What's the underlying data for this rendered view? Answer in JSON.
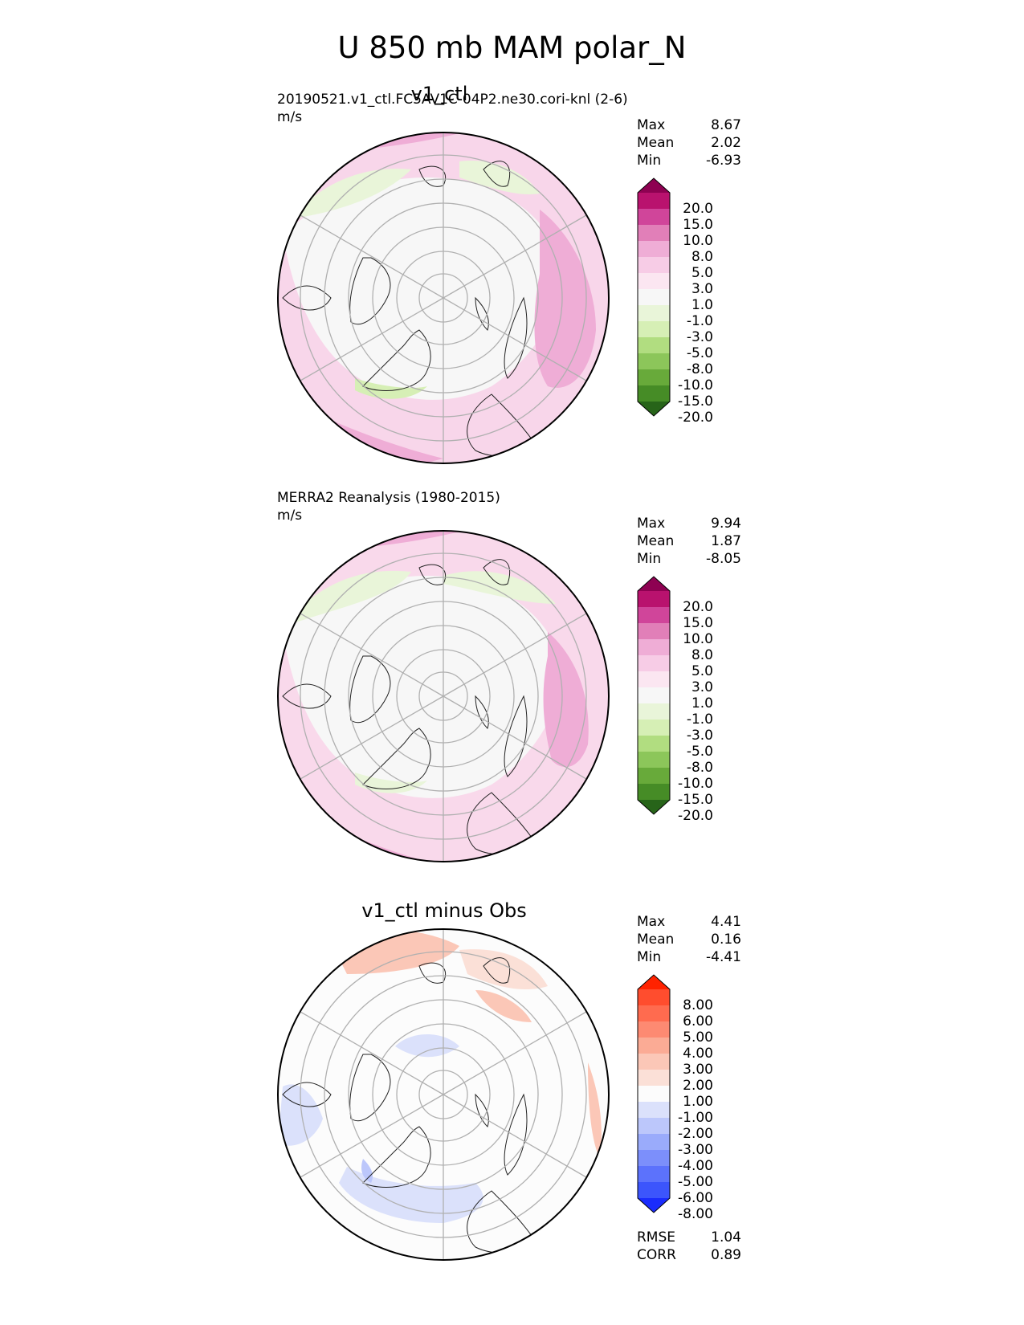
{
  "main_title": "U 850 mb MAM polar_N",
  "panels": [
    {
      "center_title": "v1_ctl",
      "left_title": "20190521.v1_ctl.FC5AV1C-04P2.ne30.cori-knl (2-6)",
      "units": "m/s",
      "stats": [
        {
          "label": "Max",
          "value": "8.67"
        },
        {
          "label": "Mean",
          "value": "2.02"
        },
        {
          "label": "Min",
          "value": "-6.93"
        }
      ],
      "colorbar": {
        "labels": [
          "20.0",
          "15.0",
          "10.0",
          "8.0",
          "5.0",
          "3.0",
          "1.0",
          "-1.0",
          "-3.0",
          "-5.0",
          "-8.0",
          "-10.0",
          "-15.0",
          "-20.0"
        ],
        "colors": [
          "#8e0152",
          "#b9126e",
          "#d0459a",
          "#e17fb8",
          "#efadd6",
          "#f7cce6",
          "#fbe6f1",
          "#f7f7f7",
          "#e9f5d9",
          "#d6efb5",
          "#b1dd80",
          "#8cc65a",
          "#68aa3a",
          "#468c26",
          "#276419"
        ]
      }
    },
    {
      "center_title": "",
      "left_title": "MERRA2 Reanalysis (1980-2015)",
      "units": "m/s",
      "stats": [
        {
          "label": "Max",
          "value": "9.94"
        },
        {
          "label": "Mean",
          "value": "1.87"
        },
        {
          "label": "Min",
          "value": "-8.05"
        }
      ],
      "colorbar": {
        "labels": [
          "20.0",
          "15.0",
          "10.0",
          "8.0",
          "5.0",
          "3.0",
          "1.0",
          "-1.0",
          "-3.0",
          "-5.0",
          "-8.0",
          "-10.0",
          "-15.0",
          "-20.0"
        ],
        "colors": [
          "#8e0152",
          "#b9126e",
          "#d0459a",
          "#e17fb8",
          "#efadd6",
          "#f7cce6",
          "#fbe6f1",
          "#f7f7f7",
          "#e9f5d9",
          "#d6efb5",
          "#b1dd80",
          "#8cc65a",
          "#68aa3a",
          "#468c26",
          "#276419"
        ]
      }
    },
    {
      "center_title": "v1_ctl minus Obs",
      "left_title": "",
      "units": "",
      "stats": [
        {
          "label": "Max",
          "value": "4.41"
        },
        {
          "label": "Mean",
          "value": "0.16"
        },
        {
          "label": "Min",
          "value": "-4.41"
        }
      ],
      "colorbar": {
        "labels": [
          "8.00",
          "6.00",
          "5.00",
          "4.00",
          "3.00",
          "2.00",
          "1.00",
          "-1.00",
          "-2.00",
          "-3.00",
          "-4.00",
          "-5.00",
          "-6.00",
          "-8.00"
        ],
        "colors": [
          "#ff2200",
          "#ff4d2e",
          "#ff6b4f",
          "#fd8a72",
          "#fbab95",
          "#fbc7b7",
          "#fbe0d7",
          "#fcfcfc",
          "#dbe1fb",
          "#bcc7fb",
          "#9aabfb",
          "#7c8ffb",
          "#5c72fc",
          "#3c55fc",
          "#1a2cfd"
        ]
      },
      "extra_stats": [
        {
          "label": "RMSE",
          "value": "1.04"
        },
        {
          "label": "CORR",
          "value": "0.89"
        }
      ]
    }
  ]
}
